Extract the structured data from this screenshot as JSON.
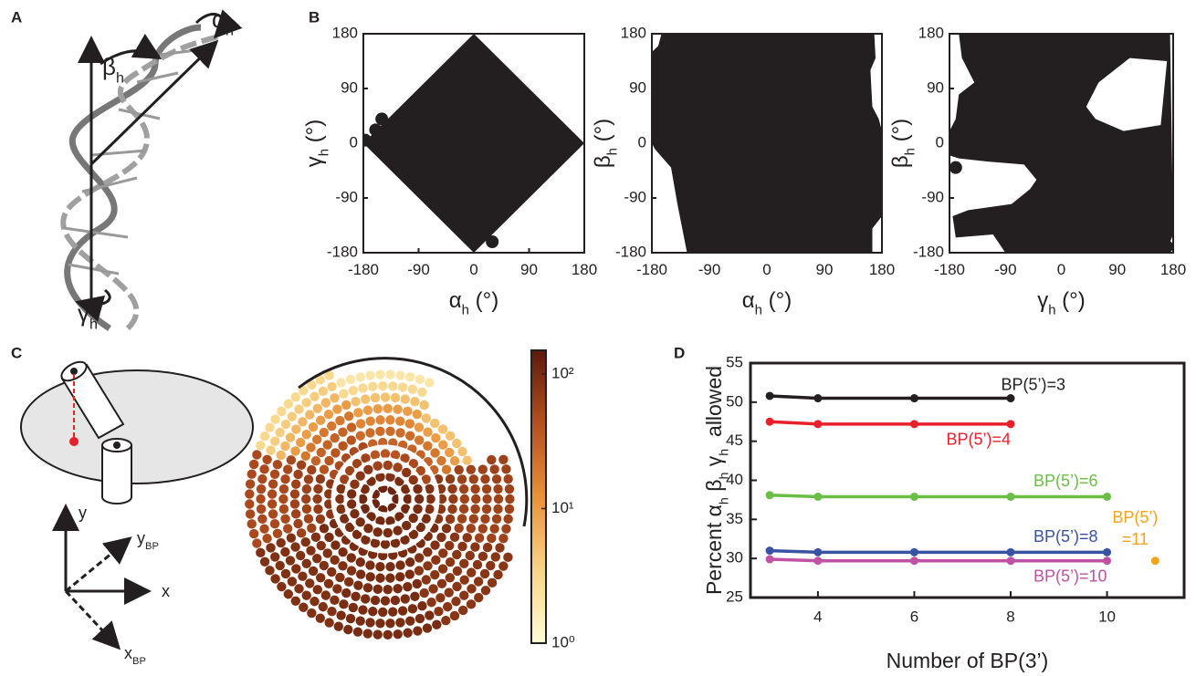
{
  "panel_labels": [
    "A",
    "B",
    "C",
    "D"
  ],
  "diagram_a": {
    "beta": [
      {
        "text": "β",
        "sub": "h"
      }
    ],
    "alpha": [
      {
        "text": "α",
        "sub": "h"
      }
    ],
    "gamma": [
      {
        "text": "γ",
        "sub": "h"
      }
    ]
  },
  "diagram_c": {
    "axis_y": [
      {
        "text": "y"
      }
    ],
    "axis_x": [
      {
        "text": "x"
      }
    ],
    "axis_ybp": [
      {
        "text": "y",
        "sub": "BP"
      }
    ],
    "axis_xbp": [
      {
        "text": "x",
        "sub": "BP"
      }
    ]
  },
  "chart_data": [
    {
      "type": "region",
      "color": "#231f20",
      "xlabel": [
        {
          "text": "α",
          "sub": "h"
        },
        {
          "text": " (°)"
        }
      ],
      "ylabel": [
        {
          "text": "γ",
          "sub": "h"
        },
        {
          "text": " (°)"
        }
      ],
      "xlim": [
        -180,
        180
      ],
      "ylim": [
        -180,
        180
      ],
      "xticks": [
        -180,
        -90,
        0,
        90,
        180
      ],
      "yticks": [
        -180,
        -90,
        0,
        90,
        180
      ],
      "regions": [
        {
          "x": [
            -180,
            0,
            180,
            0
          ],
          "y": [
            0,
            180,
            0,
            -180
          ]
        }
      ],
      "points": {
        "x": [
          -160,
          -177,
          30,
          -150
        ],
        "y": [
          22,
          5,
          -162,
          40
        ]
      }
    },
    {
      "type": "region",
      "color": "#231f20",
      "xlabel": [
        {
          "text": "α",
          "sub": "h"
        },
        {
          "text": " (°)"
        }
      ],
      "ylabel": [
        {
          "text": "β",
          "sub": "h"
        },
        {
          "text": " (°)"
        }
      ],
      "xlim": [
        -180,
        180
      ],
      "ylim": [
        -180,
        180
      ],
      "xticks": [
        -180,
        -90,
        0,
        90,
        180
      ],
      "yticks": [
        -180,
        -90,
        0,
        90,
        180
      ],
      "regions": [
        {
          "x": [
            -165,
            168,
            170,
            162,
            165,
            175,
            180,
            180,
            165,
            165,
            -125,
            -140,
            -150,
            -175,
            -180,
            -180,
            -170
          ],
          "y": [
            180,
            180,
            140,
            120,
            60,
            40,
            20,
            -120,
            -140,
            -180,
            -180,
            -100,
            -40,
            -10,
            0,
            150,
            160
          ]
        }
      ],
      "points": {
        "x": [
          -140,
          -150,
          120
        ],
        "y": [
          -15,
          20,
          -160
        ]
      }
    },
    {
      "type": "region",
      "color": "#231f20",
      "xlabel": [
        {
          "text": "γ",
          "sub": "h"
        },
        {
          "text": " (°)"
        }
      ],
      "ylabel": [
        {
          "text": "β",
          "sub": "h"
        },
        {
          "text": " (°)"
        }
      ],
      "xlim": [
        -180,
        180
      ],
      "ylim": [
        -180,
        180
      ],
      "xticks": [
        -180,
        -90,
        0,
        90,
        180
      ],
      "yticks": [
        -180,
        -90,
        0,
        90,
        180
      ],
      "regions": [
        {
          "x": [
            -165,
            175,
            180,
            168,
            -90,
            -110,
            -170,
            -175,
            -150,
            -80,
            -50,
            -40,
            -60,
            -120,
            -165,
            -180,
            -180,
            -170,
            -165,
            -140,
            -160,
            null,
            60,
            110,
            170,
            160,
            100,
            55,
            40
          ],
          "y": [
            180,
            180,
            -150,
            -180,
            -180,
            -150,
            -155,
            -120,
            -110,
            -100,
            -75,
            -60,
            -35,
            -30,
            -25,
            -20,
            20,
            40,
            80,
            100,
            140,
            null,
            100,
            140,
            135,
            30,
            20,
            40,
            60
          ]
        }
      ],
      "points": {
        "x": [
          -160,
          -170,
          170
        ],
        "y": [
          0,
          -40,
          -170
        ]
      }
    },
    {
      "type": "polar-heatmap",
      "log": true,
      "zlim": [
        1,
        150
      ],
      "zticks": [
        {
          "value": 1,
          "label": "10⁰"
        },
        {
          "value": 10,
          "label": "10¹"
        },
        {
          "value": 100,
          "label": "10²"
        }
      ],
      "colormap": [
        "#fffdd6",
        "#f8d486",
        "#e8913a",
        "#b5501f",
        "#5b1b0c"
      ],
      "rings": [
        {
          "r": 0.08,
          "values": [
            120,
            120,
            120,
            120,
            120,
            120,
            120,
            120
          ]
        },
        {
          "r": 0.16,
          "values": [
            110,
            100,
            90,
            100,
            110,
            110,
            110,
            110
          ]
        },
        {
          "r": 0.24,
          "values": [
            100,
            80,
            60,
            80,
            100,
            100,
            100,
            100
          ]
        },
        {
          "r": 0.32,
          "values": [
            90,
            50,
            40,
            60,
            90,
            100,
            100,
            100
          ]
        },
        {
          "r": 0.4,
          "values": [
            80,
            30,
            30,
            50,
            80,
            100,
            100,
            100
          ]
        },
        {
          "r": 0.48,
          "values": [
            70,
            20,
            25,
            40,
            70,
            100,
            100,
            90
          ]
        },
        {
          "r": 0.56,
          "values": [
            60,
            10,
            15,
            30,
            60,
            90,
            100,
            80
          ]
        },
        {
          "r": 0.64,
          "values": [
            60,
            5,
            10,
            20,
            60,
            90,
            100,
            80
          ]
        },
        {
          "r": 0.72,
          "values": [
            60,
            null,
            5,
            10,
            50,
            90,
            100,
            80
          ]
        },
        {
          "r": 0.8,
          "values": [
            60,
            null,
            3,
            6,
            50,
            90,
            100,
            80
          ]
        },
        {
          "r": 0.88,
          "values": [
            60,
            null,
            2,
            4,
            50,
            90,
            100,
            80
          ]
        },
        {
          "r": 0.96,
          "values": [
            null,
            null,
            null,
            3,
            50,
            90,
            100,
            80
          ]
        }
      ]
    },
    {
      "type": "line",
      "xlabel": [
        {
          "text": "Number of BP(3’)"
        }
      ],
      "ylabel": [
        {
          "text": "Percent α",
          "sub": "h"
        },
        {
          "text": " β",
          "sub": "h"
        },
        {
          "text": " γ",
          "sub": "h"
        },
        {
          "text": "  allowed"
        }
      ],
      "x": [
        3,
        4,
        6,
        8,
        10,
        11
      ],
      "xlim": [
        2.6,
        11.6
      ],
      "xticks": [
        4,
        6,
        8,
        10
      ],
      "ylim": [
        25,
        55
      ],
      "yticks": [
        25,
        30,
        35,
        40,
        45,
        50,
        55
      ],
      "series": [
        {
          "name": "BP(5’)=3",
          "color": "#231f20",
          "values": [
            50.8,
            50.5,
            50.5,
            50.5,
            null,
            null
          ]
        },
        {
          "name": "BP(5’)=4",
          "color": "#e8202a",
          "values": [
            47.5,
            47.2,
            47.2,
            47.2,
            null,
            null
          ]
        },
        {
          "name": "BP(5’)=6",
          "color": "#6abd45",
          "values": [
            38.1,
            37.9,
            37.9,
            37.9,
            37.9,
            null
          ]
        },
        {
          "name": "BP(5’)=8",
          "color": "#3953a4",
          "values": [
            31.0,
            30.8,
            30.8,
            30.8,
            30.8,
            null
          ]
        },
        {
          "name": "BP(5’)=10",
          "color": "#c051a5",
          "values": [
            29.9,
            29.7,
            29.7,
            29.7,
            29.7,
            null
          ]
        },
        {
          "name": "BP(5’)\n=11",
          "color": "#f7a21b",
          "values": [
            null,
            null,
            null,
            null,
            null,
            29.7
          ]
        }
      ]
    }
  ]
}
